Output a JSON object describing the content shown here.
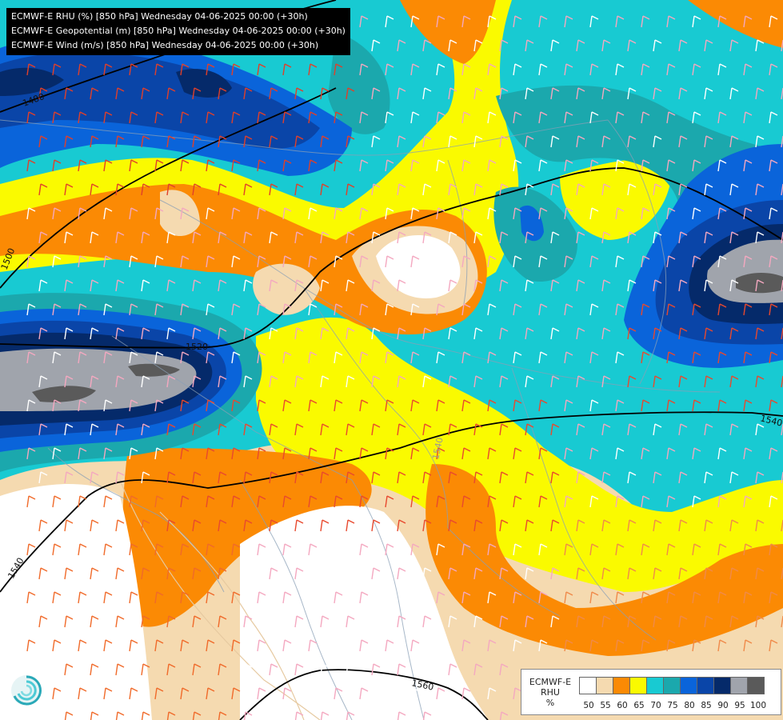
{
  "header": {
    "lines": [
      "ECMWF-E RHU (%) [850 hPa] Wednesday 04-06-2025 00:00 (+30h)",
      "ECMWF-E Geopotential (m) [850 hPa] Wednesday 04-06-2025 00:00 (+30h)",
      "ECMWF-E Wind (m/s) [850 hPa] Wednesday 04-06-2025 00:00 (+30h)"
    ]
  },
  "legend": {
    "title_lines": [
      "ECMWF-E",
      "RHU",
      "%"
    ],
    "colors": [
      "#ffffff",
      "#f5dab0",
      "#fb8a04",
      "#fafa00",
      "#18cad2",
      "#1ba8ad",
      "#0a64da",
      "#0a45a8",
      "#052a6a",
      "#a0a4ac",
      "#5a5a5a"
    ],
    "ticks": [
      "50",
      "55",
      "60",
      "65",
      "70",
      "75",
      "80",
      "85",
      "90",
      "95",
      "100"
    ]
  },
  "contours": {
    "labels": [
      "1480",
      "1500",
      "1520",
      "1540",
      "1540",
      "1540",
      "1560"
    ]
  },
  "logo": {
    "icon": "ecmwf-swirl-icon"
  }
}
